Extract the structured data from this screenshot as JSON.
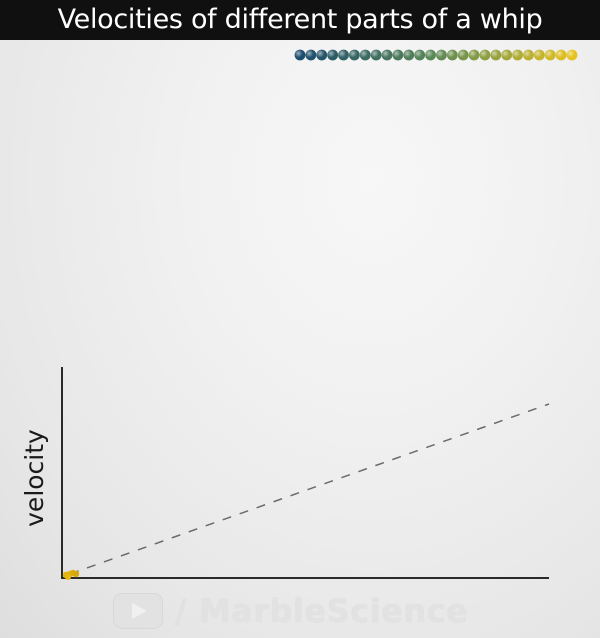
{
  "title": "Velocities of different parts of a whip",
  "whip": {
    "segment_count": 26,
    "color_start": "#1c4c6e",
    "color_mid": "#5d8a56",
    "color_end": "#e6c21f"
  },
  "chart_data": {
    "type": "scatter",
    "title": "",
    "xlabel": "",
    "ylabel": "velocity",
    "trend_line": "dashed",
    "points_color": "#e2b20e",
    "grid": false,
    "legend": "none"
  },
  "watermark": {
    "icon": "play-button-icon",
    "text": "/ MarbleScience"
  }
}
